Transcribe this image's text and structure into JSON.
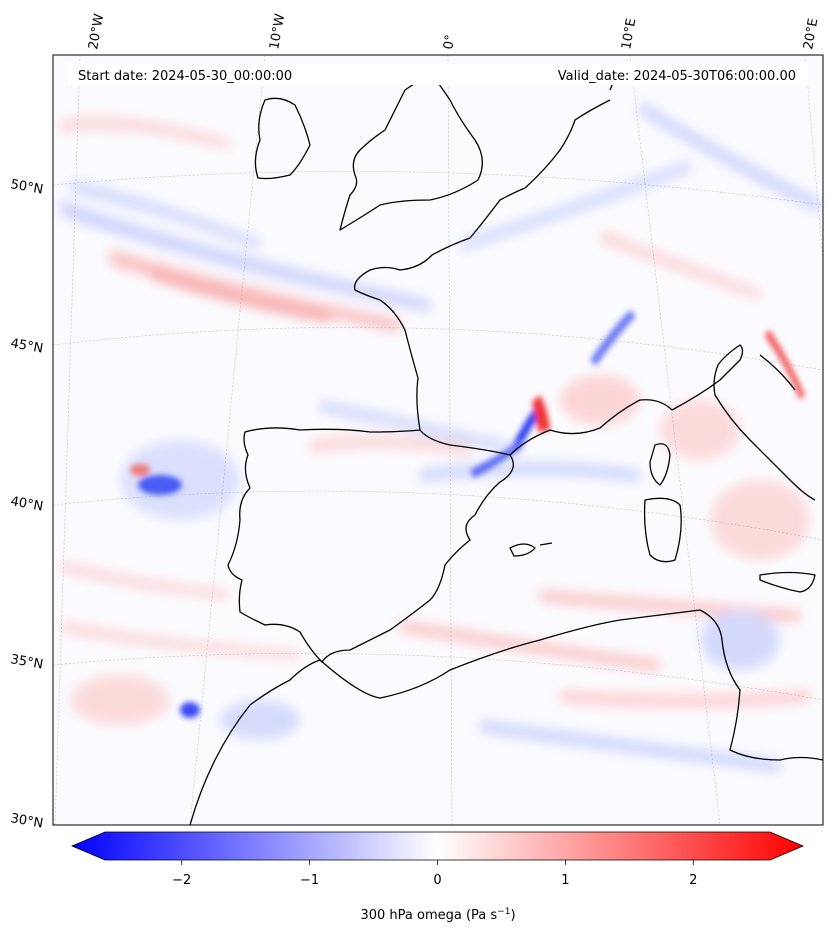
{
  "header": {
    "start_date": "Start date: 2024-05-30_00:00:00",
    "valid_date": "Valid_date: 2024-05-30T06:00:00.00"
  },
  "longitude_labels": [
    "20°W",
    "10°W",
    "0°",
    "10°E",
    "20°E"
  ],
  "latitude_labels": [
    "50°N",
    "45°N",
    "40°N",
    "35°N",
    "30°N"
  ],
  "colorbar": {
    "label_main": "300 hPa omega (Pa s",
    "label_exp": "−1",
    "label_close": ")",
    "ticks": [
      "−2",
      "−1",
      "0",
      "1",
      "2"
    ],
    "tick_values": [
      -2,
      -1,
      0,
      1,
      2
    ],
    "range": [
      -2.6,
      2.6
    ],
    "colors": {
      "negative": "#0000ff",
      "zero": "#ffffff",
      "positive": "#ff0000"
    }
  },
  "map": {
    "field": "300 hPa omega",
    "colors": {
      "ascent": "#0000ff",
      "descent": "#ff0000",
      "coastline": "#000000",
      "gridline": "#aaaaaa"
    }
  }
}
